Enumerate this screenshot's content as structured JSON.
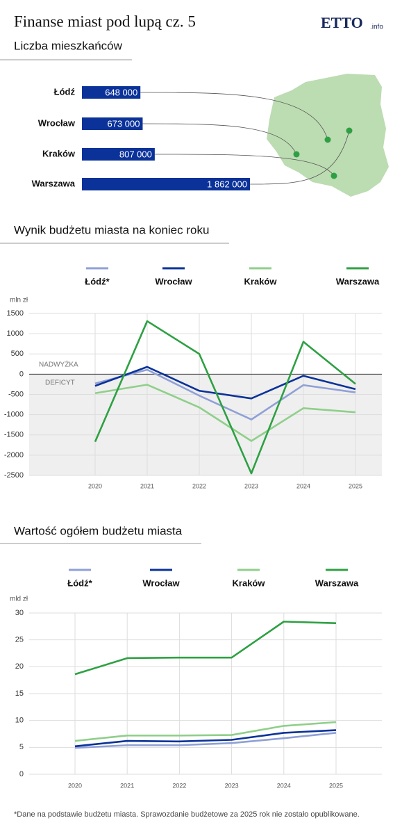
{
  "header": {
    "title": "Finanse miast pod lupą cz. 5",
    "logo": "ETTO",
    "logo_suffix": ".info"
  },
  "chart_data": [
    {
      "type": "hbar",
      "title": "Liczba mieszkańców",
      "categories": [
        "Łódź",
        "Wrocław",
        "Kraków",
        "Warszawa"
      ],
      "values": [
        648000,
        673000,
        807000,
        1862000
      ],
      "value_labels": [
        "648 000",
        "673 000",
        "807 000",
        "1 862 000"
      ],
      "color": "#0a3299"
    },
    {
      "type": "line",
      "title": "Wynik budżetu miasta na koniec roku",
      "y_label": "mln zł",
      "categories": [
        "2020",
        "2021",
        "2022",
        "2023",
        "2024",
        "2025"
      ],
      "annotations": [
        "NADWYŻKA",
        "DEFICYT"
      ],
      "ylim": [
        -2500,
        1500
      ],
      "yticks": [
        -2500,
        -2000,
        -1500,
        -1000,
        -500,
        0,
        500,
        1000,
        1500
      ],
      "grid": true,
      "series": [
        {
          "name": "Łódź*",
          "color": "#8fa0d6",
          "values": [
            -230,
            110,
            -530,
            -1120,
            -270,
            -450
          ]
        },
        {
          "name": "Wrocław",
          "color": "#0a3299",
          "values": [
            -290,
            180,
            -410,
            -600,
            -40,
            -370
          ]
        },
        {
          "name": "Kraków",
          "color": "#8fcf8a",
          "values": [
            -470,
            -260,
            -820,
            -1650,
            -840,
            -940
          ]
        },
        {
          "name": "Warszawa",
          "color": "#2ea043",
          "values": [
            -1670,
            1310,
            500,
            -2450,
            800,
            -240
          ]
        }
      ]
    },
    {
      "type": "line",
      "title": "Wartość ogółem budżetu miasta",
      "y_label": "mld zł",
      "categories": [
        "2020",
        "2021",
        "2022",
        "2023",
        "2024",
        "2025"
      ],
      "ylim": [
        0,
        30
      ],
      "yticks": [
        0,
        5,
        10,
        15,
        20,
        25,
        30
      ],
      "grid": true,
      "series": [
        {
          "name": "Łódź*",
          "color": "#8fa0d6",
          "values": [
            4.9,
            5.4,
            5.4,
            5.8,
            6.7,
            7.7
          ]
        },
        {
          "name": "Wrocław",
          "color": "#0a3299",
          "values": [
            5.2,
            6.2,
            6.1,
            6.4,
            7.7,
            8.2
          ]
        },
        {
          "name": "Kraków",
          "color": "#8fcf8a",
          "values": [
            6.2,
            7.2,
            7.2,
            7.3,
            9.0,
            9.7
          ]
        },
        {
          "name": "Warszawa",
          "color": "#2ea043",
          "values": [
            18.6,
            21.6,
            21.7,
            21.7,
            28.4,
            28.1
          ]
        }
      ]
    }
  ],
  "footnote": "*Dane na podstawie budżetu miasta. Sprawozdanie budżetowe za 2025 rok nie zostało opublikowane."
}
